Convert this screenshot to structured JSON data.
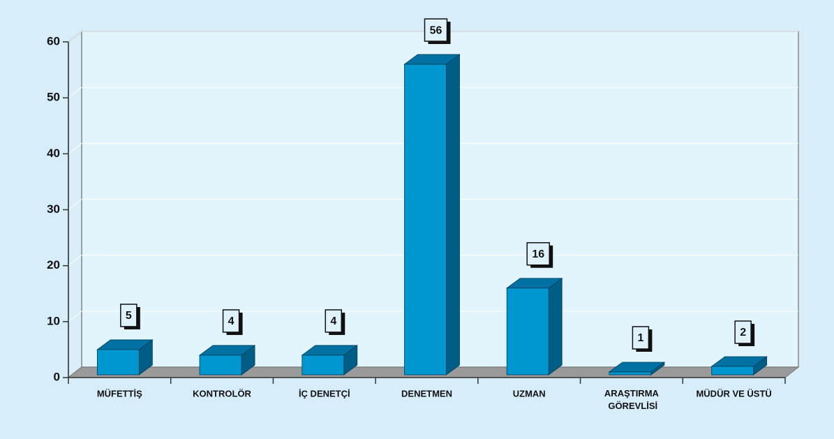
{
  "chart_data": {
    "type": "bar3d",
    "categories": [
      "MÜFETTİŞ",
      "KONTROLÖR",
      "İÇ DENETÇİ",
      "DENETMEN",
      "UZMAN",
      "ARAŞTIRMA GÖREVLİSİ",
      "MÜDÜR VE ÜSTÜ"
    ],
    "values": [
      5,
      4,
      4,
      56,
      16,
      1,
      2
    ],
    "color": "#0096cf",
    "ylim": [
      0,
      60
    ],
    "yticks": [
      0,
      10,
      20,
      30,
      40,
      50,
      60
    ],
    "grid": true
  }
}
